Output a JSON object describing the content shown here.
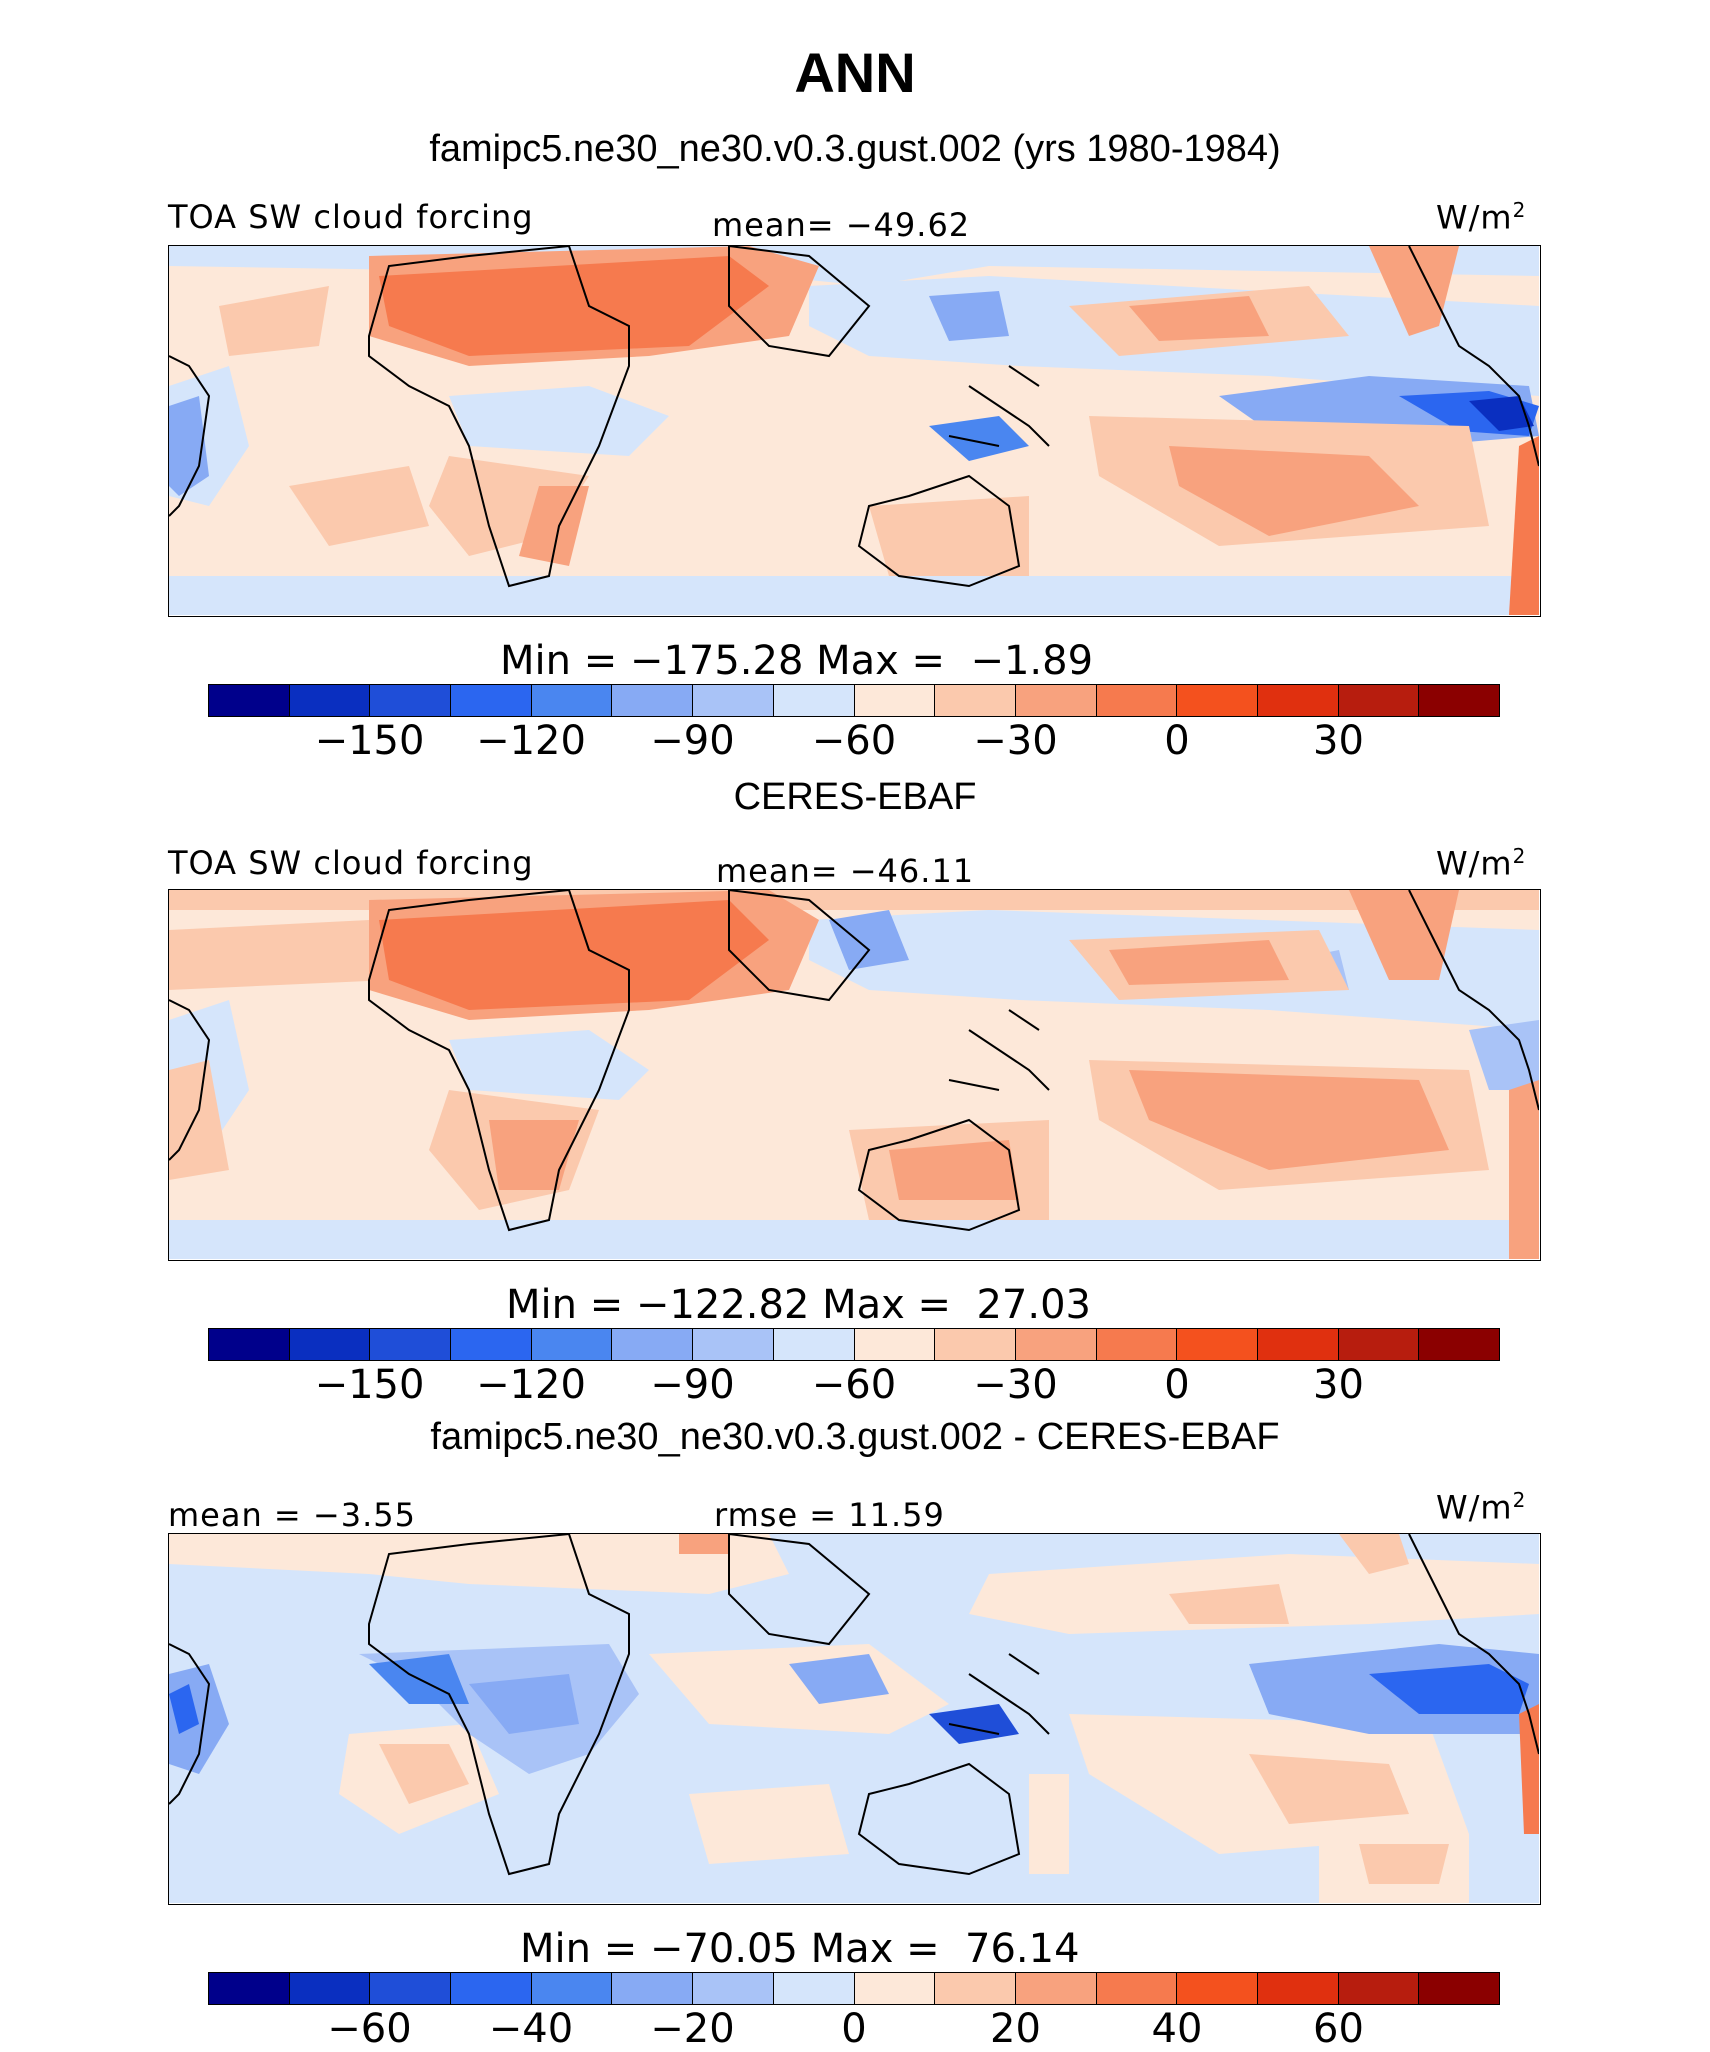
{
  "figure": {
    "title": "ANN",
    "colors": {
      "absolute_scale": [
        "#00008b",
        "#0a2fc0",
        "#1f4ed8",
        "#2b66f0",
        "#4a86f0",
        "#87aaf4",
        "#a9c3f7",
        "#d5e5fb",
        "#fde8d9",
        "#fbc9ad",
        "#f8a27e",
        "#f67a4e",
        "#f4511e",
        "#e0300f",
        "#b71d0e",
        "#8b0000"
      ],
      "diff_scale": [
        "#00008b",
        "#0a2fc0",
        "#1f4ed8",
        "#2b66f0",
        "#4a86f0",
        "#87aaf4",
        "#a9c3f7",
        "#d5e5fb",
        "#fde8d9",
        "#fbc9ad",
        "#f8a27e",
        "#f67a4e",
        "#f4511e",
        "#e0300f",
        "#b71d0e",
        "#8b0000"
      ]
    }
  },
  "chart_data": [
    {
      "type": "heatmap",
      "name": "model",
      "title": "famipc5.ne30_ne30.v0.3.gust.002 (yrs 1980-1984)",
      "left_label": "TOA SW cloud forcing",
      "center_label": "mean= −49.62",
      "units": "W/m",
      "units_sup": "2",
      "min_label": "Min = −175.28 Max =  −1.89",
      "min": -175.28,
      "max": -1.89,
      "mean": -49.62,
      "levels": [
        -165,
        -150,
        -135,
        -120,
        -105,
        -90,
        -75,
        -60,
        -45,
        -30,
        -15,
        0,
        15,
        30,
        45
      ],
      "tick_labels": [
        "−150",
        "−120",
        "−90",
        "−60",
        "−30",
        "0",
        "30"
      ]
    },
    {
      "type": "heatmap",
      "name": "obs",
      "title": "CERES-EBAF",
      "left_label": "TOA SW cloud forcing",
      "center_label": "mean= −46.11",
      "units": "W/m",
      "units_sup": "2",
      "min_label": "Min = −122.82 Max =  27.03",
      "min": -122.82,
      "max": 27.03,
      "mean": -46.11,
      "levels": [
        -165,
        -150,
        -135,
        -120,
        -105,
        -90,
        -75,
        -60,
        -45,
        -30,
        -15,
        0,
        15,
        30,
        45
      ],
      "tick_labels": [
        "−150",
        "−120",
        "−90",
        "−60",
        "−30",
        "0",
        "30"
      ]
    },
    {
      "type": "heatmap",
      "name": "diff",
      "title": "famipc5.ne30_ne30.v0.3.gust.002 - CERES-EBAF",
      "left_label": "mean =  −3.55",
      "center_label": "rmse =  11.59",
      "units": "W/m",
      "units_sup": "2",
      "min_label": "Min = −70.05 Max =  76.14",
      "min": -70.05,
      "max": 76.14,
      "mean": -3.55,
      "rmse": 11.59,
      "levels": [
        -70,
        -60,
        -50,
        -40,
        -30,
        -20,
        -10,
        0,
        10,
        20,
        30,
        40,
        50,
        60,
        70
      ],
      "tick_labels": [
        "−60",
        "−40",
        "−20",
        "0",
        "20",
        "40",
        "60"
      ]
    }
  ]
}
